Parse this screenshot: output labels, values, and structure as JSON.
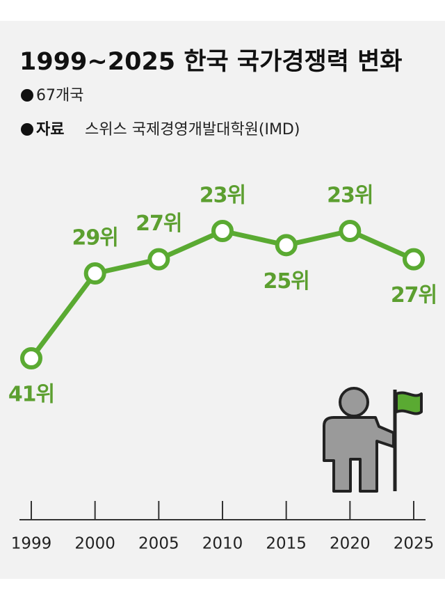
{
  "chart_data": {
    "type": "line",
    "title": "1999~2025 한국 국가경쟁력 변화",
    "subtitle": "67개국",
    "source_label": "자료",
    "source": "스위스 국제경영개발대학원(IMD)",
    "categories": [
      "1999",
      "2000",
      "2005",
      "2010",
      "2015",
      "2020",
      "2025"
    ],
    "values": [
      41,
      29,
      27,
      23,
      25,
      23,
      27
    ],
    "value_labels": [
      "41위",
      "29위",
      "27위",
      "23위",
      "25위",
      "23위",
      "27위"
    ],
    "color": "#5aaa32",
    "label_color": "#5c9f30"
  }
}
